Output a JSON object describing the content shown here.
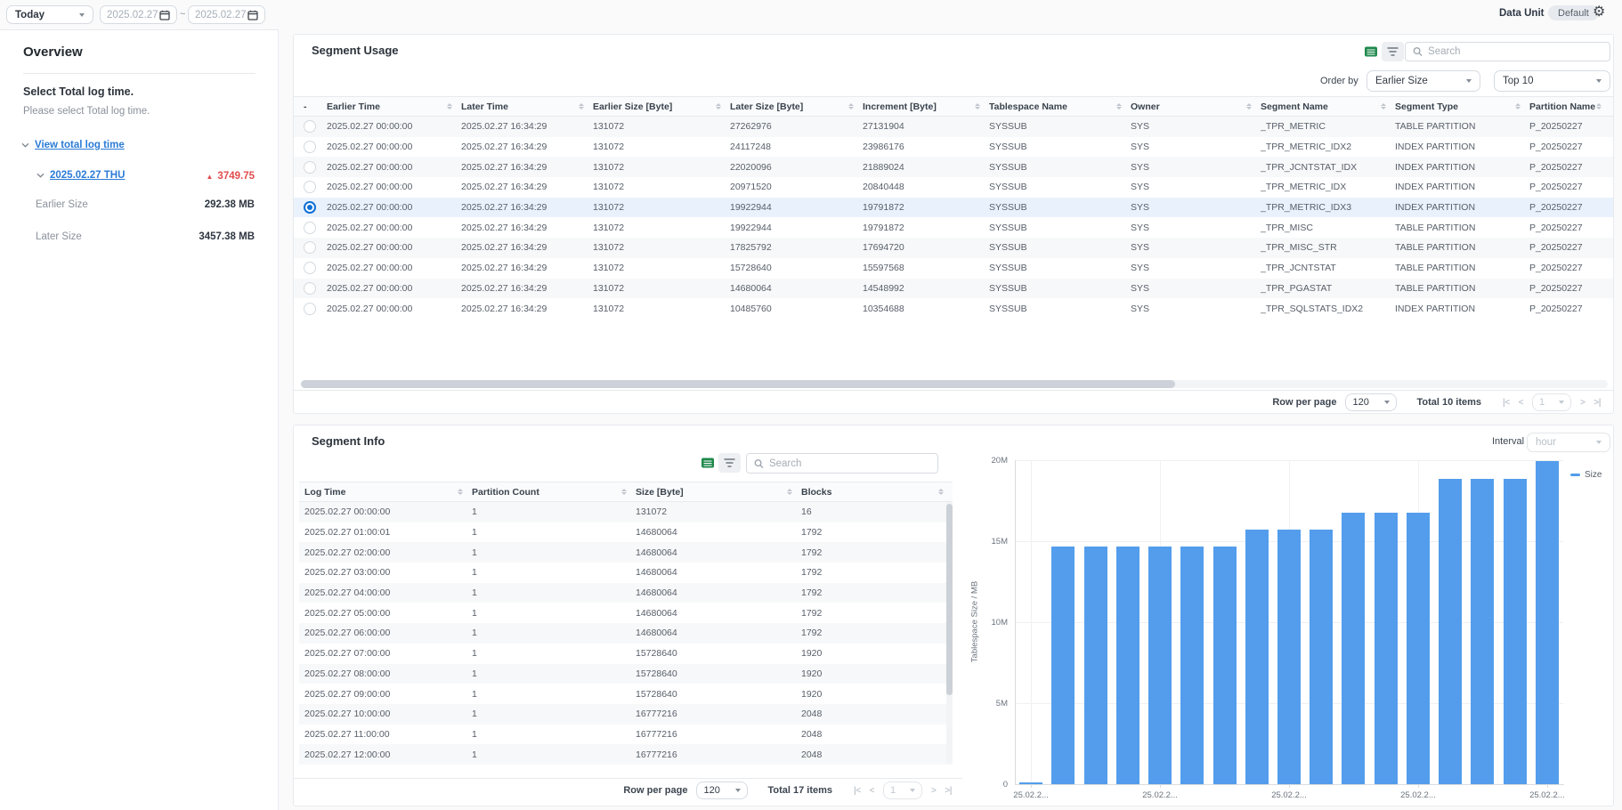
{
  "topbar": {
    "preset": "Today",
    "date_from": "2025.02.27",
    "date_to": "2025.02.27",
    "range_separator": "~",
    "data_unit_label": "Data Unit",
    "data_unit_value": "Default"
  },
  "sidebar": {
    "title": "Overview",
    "section_heading": "Select Total log time.",
    "section_subheading": "Please select Total log time.",
    "view_link": "View total log time",
    "day_link": "2025.02.27 THU",
    "day_delta_icon": "▲",
    "day_delta": "3749.75",
    "stats": [
      {
        "label": "Earlier Size",
        "value": "292.38 MB"
      },
      {
        "label": "Later Size",
        "value": "3457.38 MB"
      }
    ]
  },
  "segment_usage": {
    "title": "Segment Usage",
    "search_placeholder": "Search",
    "order_by_label": "Order by",
    "order_by_value": "Earlier Size",
    "top_n_value": "Top 10",
    "columns": [
      "-",
      "Earlier Time",
      "Later Time",
      "Earlier Size [Byte]",
      "Later Size [Byte]",
      "Increment [Byte]",
      "Tablespace Name",
      "Owner",
      "Segment Name",
      "Segment Type",
      "Partition Name"
    ],
    "selected_row_index": 4,
    "rows": [
      [
        "2025.02.27 00:00:00",
        "2025.02.27 16:34:29",
        "131072",
        "27262976",
        "27131904",
        "SYSSUB",
        "SYS",
        "_TPR_METRIC",
        "TABLE PARTITION",
        "P_20250227"
      ],
      [
        "2025.02.27 00:00:00",
        "2025.02.27 16:34:29",
        "131072",
        "24117248",
        "23986176",
        "SYSSUB",
        "SYS",
        "_TPR_METRIC_IDX2",
        "INDEX PARTITION",
        "P_20250227"
      ],
      [
        "2025.02.27 00:00:00",
        "2025.02.27 16:34:29",
        "131072",
        "22020096",
        "21889024",
        "SYSSUB",
        "SYS",
        "_TPR_JCNTSTAT_IDX",
        "INDEX PARTITION",
        "P_20250227"
      ],
      [
        "2025.02.27 00:00:00",
        "2025.02.27 16:34:29",
        "131072",
        "20971520",
        "20840448",
        "SYSSUB",
        "SYS",
        "_TPR_METRIC_IDX",
        "INDEX PARTITION",
        "P_20250227"
      ],
      [
        "2025.02.27 00:00:00",
        "2025.02.27 16:34:29",
        "131072",
        "19922944",
        "19791872",
        "SYSSUB",
        "SYS",
        "_TPR_METRIC_IDX3",
        "INDEX PARTITION",
        "P_20250227"
      ],
      [
        "2025.02.27 00:00:00",
        "2025.02.27 16:34:29",
        "131072",
        "19922944",
        "19791872",
        "SYSSUB",
        "SYS",
        "_TPR_MISC",
        "TABLE PARTITION",
        "P_20250227"
      ],
      [
        "2025.02.27 00:00:00",
        "2025.02.27 16:34:29",
        "131072",
        "17825792",
        "17694720",
        "SYSSUB",
        "SYS",
        "_TPR_MISC_STR",
        "TABLE PARTITION",
        "P_20250227"
      ],
      [
        "2025.02.27 00:00:00",
        "2025.02.27 16:34:29",
        "131072",
        "15728640",
        "15597568",
        "SYSSUB",
        "SYS",
        "_TPR_JCNTSTAT",
        "TABLE PARTITION",
        "P_20250227"
      ],
      [
        "2025.02.27 00:00:00",
        "2025.02.27 16:34:29",
        "131072",
        "14680064",
        "14548992",
        "SYSSUB",
        "SYS",
        "_TPR_PGASTAT",
        "TABLE PARTITION",
        "P_20250227"
      ],
      [
        "2025.02.27 00:00:00",
        "2025.02.27 16:34:29",
        "131072",
        "10485760",
        "10354688",
        "SYSSUB",
        "SYS",
        "_TPR_SQLSTATS_IDX2",
        "INDEX PARTITION",
        "P_20250227"
      ]
    ],
    "footer": {
      "row_per_page_label": "Row per page",
      "row_per_page_value": "120",
      "total_text": "Total 10 items",
      "page_value": "1"
    }
  },
  "segment_info": {
    "title": "Segment Info",
    "search_placeholder": "Search",
    "columns": [
      "Log Time",
      "Partition Count",
      "Size [Byte]",
      "Blocks"
    ],
    "rows": [
      [
        "2025.02.27 00:00:00",
        "1",
        "131072",
        "16"
      ],
      [
        "2025.02.27 01:00:01",
        "1",
        "14680064",
        "1792"
      ],
      [
        "2025.02.27 02:00:00",
        "1",
        "14680064",
        "1792"
      ],
      [
        "2025.02.27 03:00:00",
        "1",
        "14680064",
        "1792"
      ],
      [
        "2025.02.27 04:00:00",
        "1",
        "14680064",
        "1792"
      ],
      [
        "2025.02.27 05:00:00",
        "1",
        "14680064",
        "1792"
      ],
      [
        "2025.02.27 06:00:00",
        "1",
        "14680064",
        "1792"
      ],
      [
        "2025.02.27 07:00:00",
        "1",
        "15728640",
        "1920"
      ],
      [
        "2025.02.27 08:00:00",
        "1",
        "15728640",
        "1920"
      ],
      [
        "2025.02.27 09:00:00",
        "1",
        "15728640",
        "1920"
      ],
      [
        "2025.02.27 10:00:00",
        "1",
        "16777216",
        "2048"
      ],
      [
        "2025.02.27 11:00:00",
        "1",
        "16777216",
        "2048"
      ],
      [
        "2025.02.27 12:00:00",
        "1",
        "16777216",
        "2048"
      ]
    ],
    "footer": {
      "row_per_page_label": "Row per page",
      "row_per_page_value": "120",
      "total_text": "Total 17 items",
      "page_value": "1"
    },
    "interval_label": "Interval",
    "interval_value": "hour"
  },
  "chart_data": {
    "type": "bar",
    "title": "",
    "xlabel": "",
    "ylabel": "Tablespace Size / MB",
    "legend": [
      "Size"
    ],
    "legend_position": "right",
    "grid": true,
    "ylim": [
      0,
      20
    ],
    "ytick_labels": [
      "0",
      "5M",
      "10M",
      "15M",
      "20M"
    ],
    "xtick_labels": [
      "25.02.2...",
      "25.02.2...",
      "25.02.2...",
      "25.02.2...",
      "25.02.2..."
    ],
    "xtick_indices": [
      0,
      4,
      8,
      12,
      16
    ],
    "values_unit": "M (bytes / 1e6)",
    "series": [
      {
        "name": "Size",
        "values": [
          0.131072,
          14.680064,
          14.680064,
          14.680064,
          14.680064,
          14.680064,
          14.680064,
          15.72864,
          15.72864,
          15.72864,
          16.777216,
          16.777216,
          16.777216,
          18.874368,
          18.874368,
          18.874368,
          19.922944
        ]
      }
    ],
    "bar_color": "#539dec"
  },
  "icons": {
    "first_page": "|<",
    "prev_page": "<",
    "next_page": ">",
    "last_page": ">|"
  },
  "colors": {
    "accent_blue": "#0f6fd7",
    "link_blue": "#2b7bd6",
    "delta_red": "#e24c4c",
    "bar_blue": "#539dec",
    "selected_row_bg": "#e9f2fc"
  }
}
